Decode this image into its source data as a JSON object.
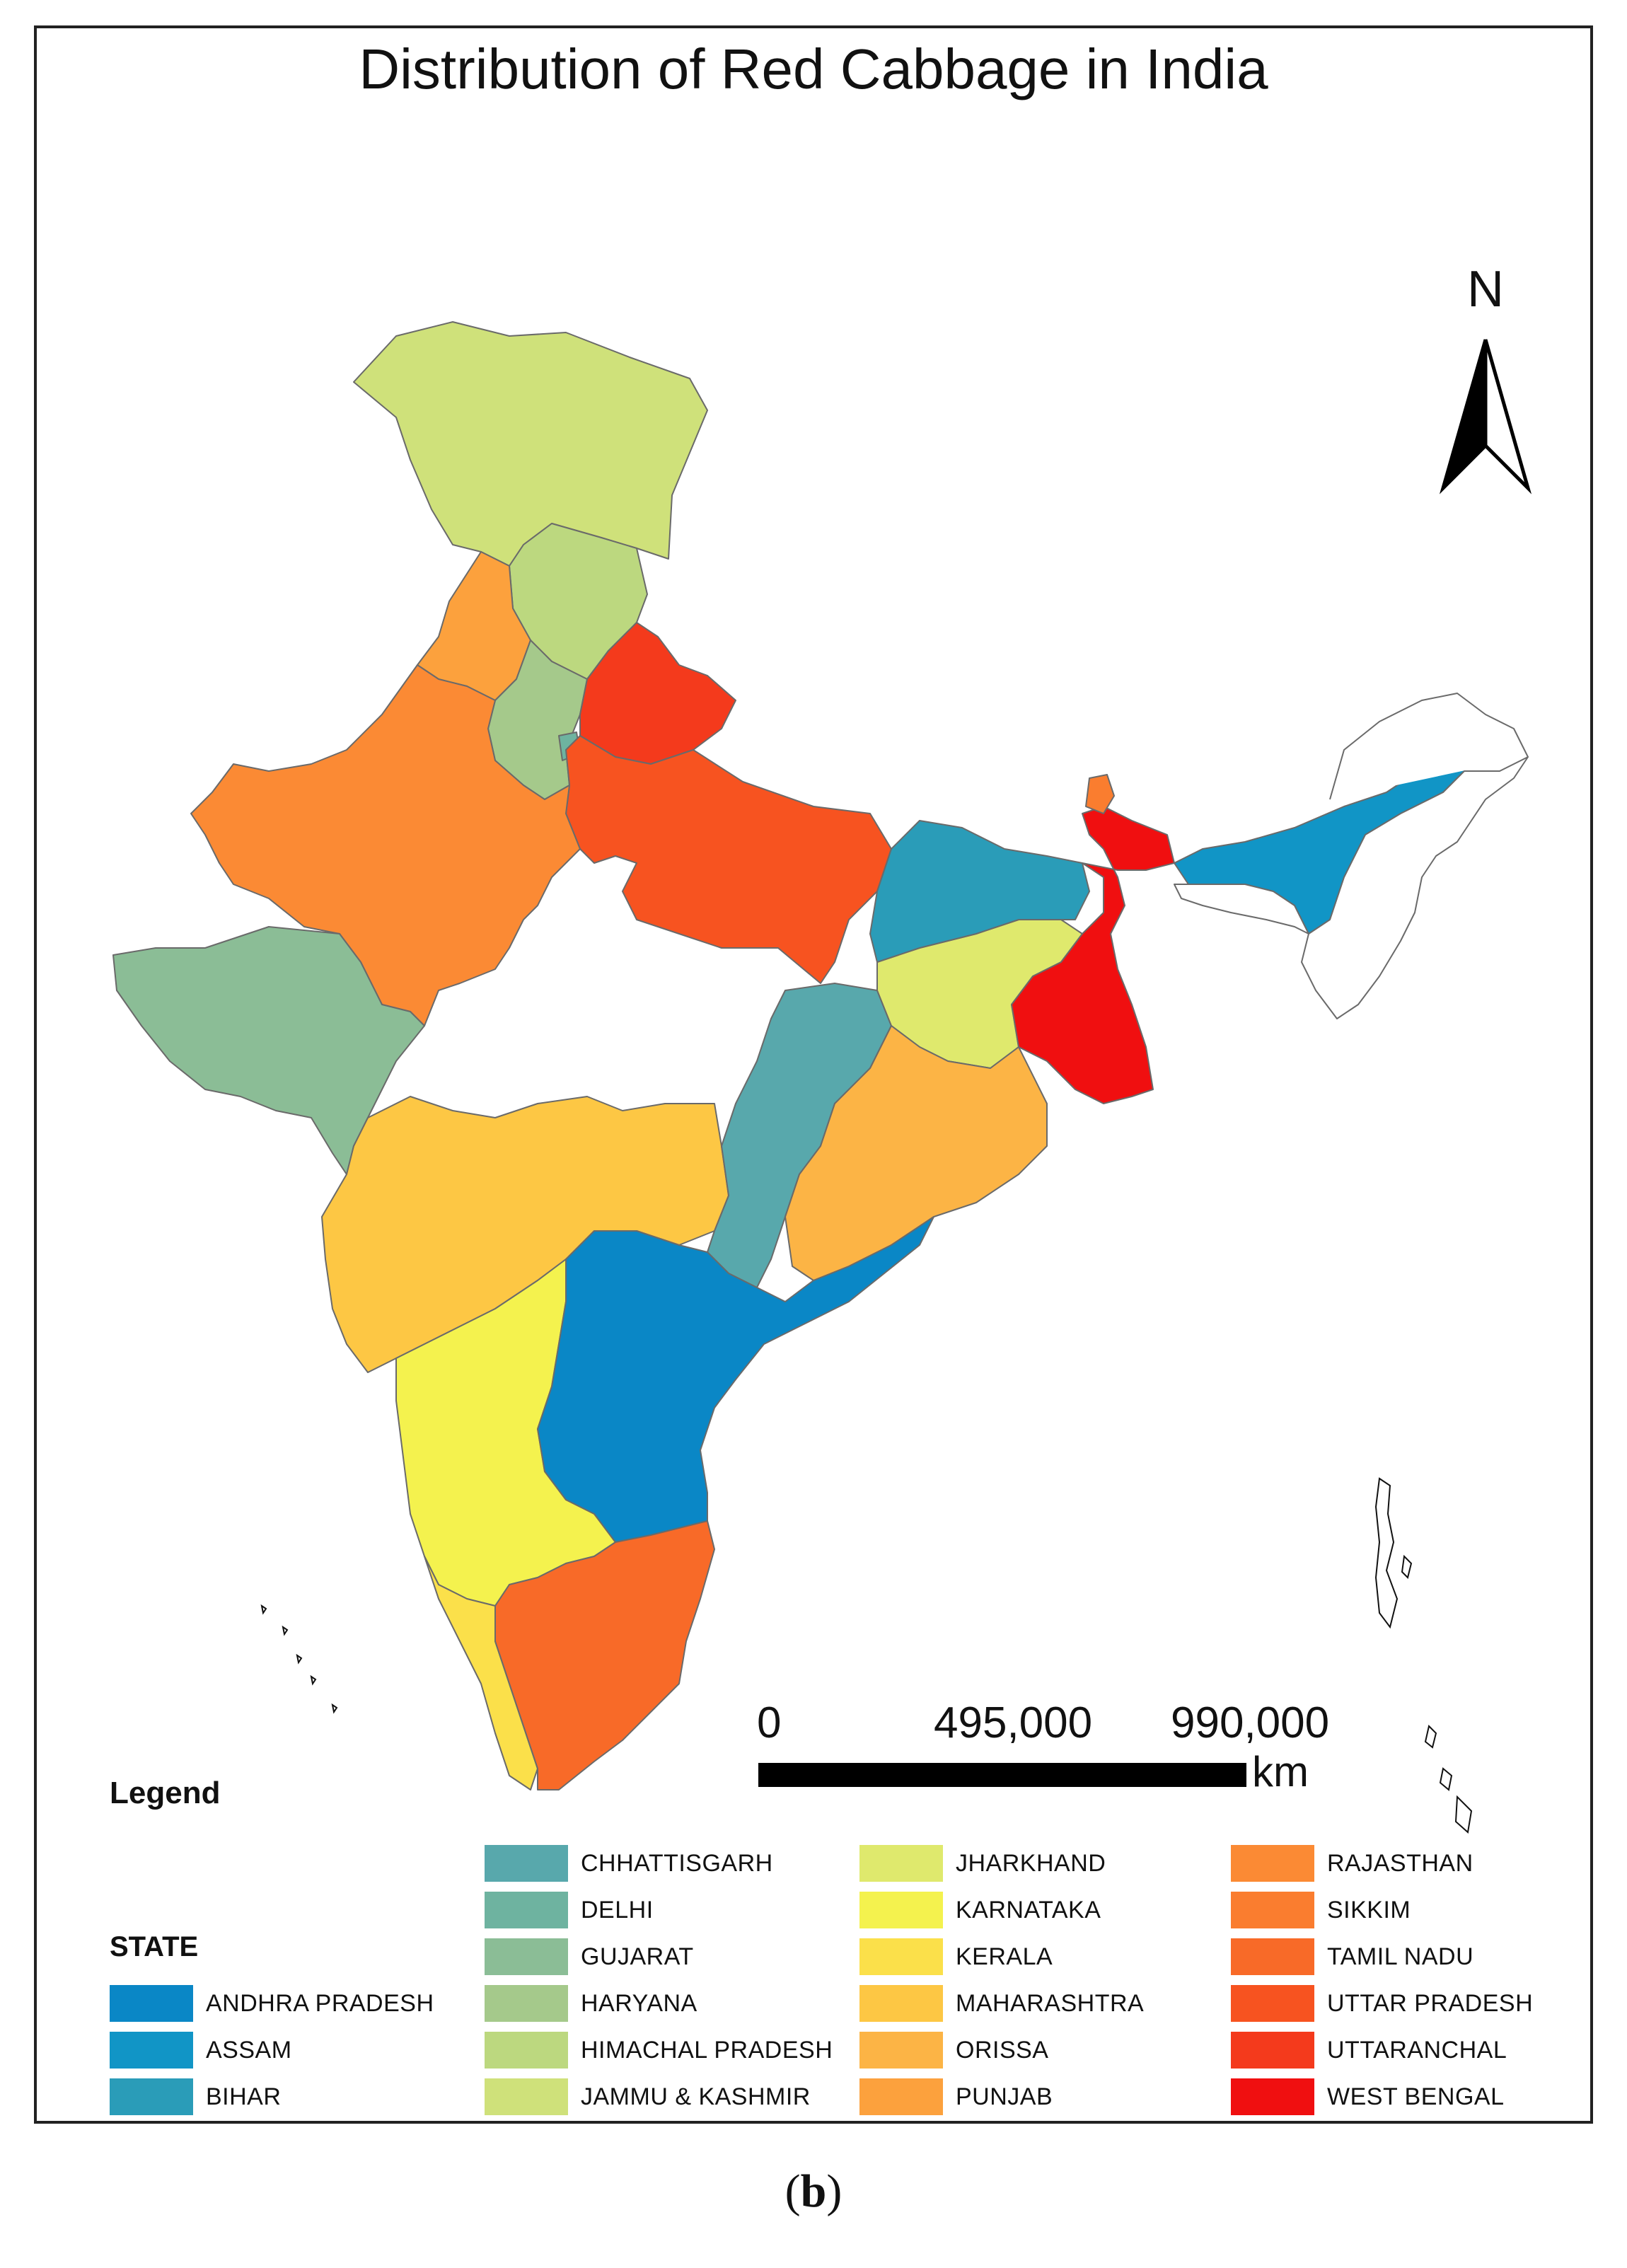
{
  "title": "Distribution of Red Cabbage in India",
  "north_label": "N",
  "scale": {
    "ticks": [
      "0",
      "495,000",
      "990,000"
    ],
    "unit": "km"
  },
  "legend": {
    "title": "Legend",
    "field": "STATE",
    "items": [
      {
        "name": "ANDHRA PRADESH",
        "color": "#0a87c6"
      },
      {
        "name": "ASSAM",
        "color": "#1195c6"
      },
      {
        "name": "BIHAR",
        "color": "#2a9cb8"
      },
      {
        "name": "CHHATTISGARH",
        "color": "#58a8ac"
      },
      {
        "name": "DELHI",
        "color": "#6eb3a0"
      },
      {
        "name": "GUJARAT",
        "color": "#8bbd96"
      },
      {
        "name": "HARYANA",
        "color": "#a5c98b"
      },
      {
        "name": "HIMACHAL PRADESH",
        "color": "#bcd87f"
      },
      {
        "name": "JAMMU & KASHMIR",
        "color": "#cfe17a"
      },
      {
        "name": "JHARKHAND",
        "color": "#dfe96d"
      },
      {
        "name": "KARNATAKA",
        "color": "#f4f24e"
      },
      {
        "name": "KERALA",
        "color": "#fbe04a"
      },
      {
        "name": "MAHARASHTRA",
        "color": "#fdc744"
      },
      {
        "name": "ORISSA",
        "color": "#fcb445"
      },
      {
        "name": "PUNJAB",
        "color": "#fca13d"
      },
      {
        "name": "RAJASTHAN",
        "color": "#fb8a34"
      },
      {
        "name": "SIKKIM",
        "color": "#fa7d2f"
      },
      {
        "name": "TAMIL NADU",
        "color": "#f86a28"
      },
      {
        "name": "UTTAR PRADESH",
        "color": "#f75320"
      },
      {
        "name": "UTTARANCHAL",
        "color": "#f43a1c"
      },
      {
        "name": "WEST BENGAL",
        "color": "#f00f10"
      }
    ]
  },
  "caption": {
    "open": "(",
    "label": "b",
    "close": ")"
  }
}
